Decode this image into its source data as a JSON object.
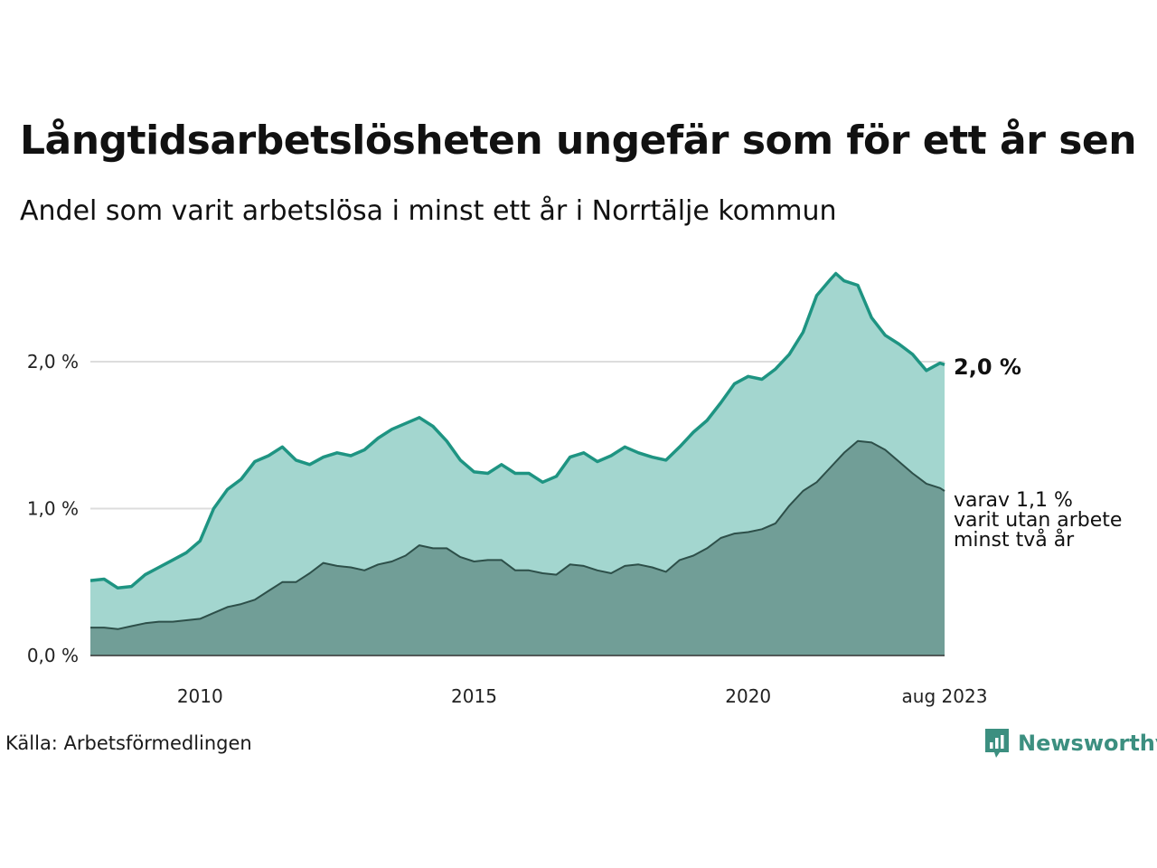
{
  "title": "Långtidsarbetslösheten ungefär som för ett år sen",
  "subtitle": "Andel som varit arbetslösa i minst ett år i Norrtälje kommun",
  "source": "Källa: Arbetsförmedlingen",
  "logo_text": "Newsworthy",
  "colors": {
    "total_line": "#1e9482",
    "total_fill": "#a3d6cf",
    "sub_line": "#2d4f49",
    "sub_fill": "#719e97",
    "grid": "#dddddd",
    "logo": "#3c8f80"
  },
  "chart_data": {
    "type": "area",
    "title": "Långtidsarbetslösheten ungefär som för ett år sen",
    "subtitle": "Andel som varit arbetslösa i minst ett år i Norrtälje kommun",
    "xlabel": "",
    "ylabel": "",
    "x_range": [
      2008.0,
      2023.583
    ],
    "ylim": [
      0.0,
      2.75
    ],
    "y_ticks": [
      0.0,
      1.0,
      2.0
    ],
    "y_tick_labels": [
      "0,0 %",
      "1,0 %",
      "2,0 %"
    ],
    "x_ticks": [
      2010,
      2015,
      2020,
      2023.583
    ],
    "x_tick_labels": [
      "2010",
      "2015",
      "2020",
      "aug 2023"
    ],
    "grid": true,
    "series": [
      {
        "key": "total",
        "points": [
          [
            2008.0,
            0.51
          ],
          [
            2008.25,
            0.52
          ],
          [
            2008.5,
            0.46
          ],
          [
            2008.75,
            0.47
          ],
          [
            2009.0,
            0.55
          ],
          [
            2009.25,
            0.6
          ],
          [
            2009.5,
            0.65
          ],
          [
            2009.75,
            0.7
          ],
          [
            2010.0,
            0.78
          ],
          [
            2010.25,
            1.0
          ],
          [
            2010.5,
            1.13
          ],
          [
            2010.75,
            1.2
          ],
          [
            2011.0,
            1.32
          ],
          [
            2011.25,
            1.36
          ],
          [
            2011.5,
            1.42
          ],
          [
            2011.75,
            1.33
          ],
          [
            2012.0,
            1.3
          ],
          [
            2012.25,
            1.35
          ],
          [
            2012.5,
            1.38
          ],
          [
            2012.75,
            1.36
          ],
          [
            2013.0,
            1.4
          ],
          [
            2013.25,
            1.48
          ],
          [
            2013.5,
            1.54
          ],
          [
            2013.75,
            1.58
          ],
          [
            2014.0,
            1.62
          ],
          [
            2014.25,
            1.56
          ],
          [
            2014.5,
            1.46
          ],
          [
            2014.75,
            1.33
          ],
          [
            2015.0,
            1.25
          ],
          [
            2015.25,
            1.24
          ],
          [
            2015.5,
            1.3
          ],
          [
            2015.75,
            1.24
          ],
          [
            2016.0,
            1.24
          ],
          [
            2016.25,
            1.18
          ],
          [
            2016.5,
            1.22
          ],
          [
            2016.75,
            1.35
          ],
          [
            2017.0,
            1.38
          ],
          [
            2017.25,
            1.32
          ],
          [
            2017.5,
            1.36
          ],
          [
            2017.75,
            1.42
          ],
          [
            2018.0,
            1.38
          ],
          [
            2018.25,
            1.35
          ],
          [
            2018.5,
            1.33
          ],
          [
            2018.75,
            1.42
          ],
          [
            2019.0,
            1.52
          ],
          [
            2019.25,
            1.6
          ],
          [
            2019.5,
            1.72
          ],
          [
            2019.75,
            1.85
          ],
          [
            2020.0,
            1.9
          ],
          [
            2020.25,
            1.88
          ],
          [
            2020.5,
            1.95
          ],
          [
            2020.75,
            2.05
          ],
          [
            2021.0,
            2.2
          ],
          [
            2021.25,
            2.45
          ],
          [
            2021.5,
            2.56
          ],
          [
            2021.6,
            2.6
          ],
          [
            2021.75,
            2.55
          ],
          [
            2022.0,
            2.52
          ],
          [
            2022.25,
            2.3
          ],
          [
            2022.5,
            2.18
          ],
          [
            2022.75,
            2.12
          ],
          [
            2023.0,
            2.05
          ],
          [
            2023.25,
            1.94
          ],
          [
            2023.5,
            1.99
          ],
          [
            2023.583,
            1.98
          ]
        ]
      },
      {
        "key": "sub",
        "points": [
          [
            2008.0,
            0.19
          ],
          [
            2008.25,
            0.19
          ],
          [
            2008.5,
            0.18
          ],
          [
            2008.75,
            0.2
          ],
          [
            2009.0,
            0.22
          ],
          [
            2009.25,
            0.23
          ],
          [
            2009.5,
            0.23
          ],
          [
            2009.75,
            0.24
          ],
          [
            2010.0,
            0.25
          ],
          [
            2010.25,
            0.29
          ],
          [
            2010.5,
            0.33
          ],
          [
            2010.75,
            0.35
          ],
          [
            2011.0,
            0.38
          ],
          [
            2011.25,
            0.44
          ],
          [
            2011.5,
            0.5
          ],
          [
            2011.75,
            0.5
          ],
          [
            2012.0,
            0.56
          ],
          [
            2012.25,
            0.63
          ],
          [
            2012.5,
            0.61
          ],
          [
            2012.75,
            0.6
          ],
          [
            2013.0,
            0.58
          ],
          [
            2013.25,
            0.62
          ],
          [
            2013.5,
            0.64
          ],
          [
            2013.75,
            0.68
          ],
          [
            2014.0,
            0.75
          ],
          [
            2014.25,
            0.73
          ],
          [
            2014.5,
            0.73
          ],
          [
            2014.75,
            0.67
          ],
          [
            2015.0,
            0.64
          ],
          [
            2015.25,
            0.65
          ],
          [
            2015.5,
            0.65
          ],
          [
            2015.75,
            0.58
          ],
          [
            2016.0,
            0.58
          ],
          [
            2016.25,
            0.56
          ],
          [
            2016.5,
            0.55
          ],
          [
            2016.75,
            0.62
          ],
          [
            2017.0,
            0.61
          ],
          [
            2017.25,
            0.58
          ],
          [
            2017.5,
            0.56
          ],
          [
            2017.75,
            0.61
          ],
          [
            2018.0,
            0.62
          ],
          [
            2018.25,
            0.6
          ],
          [
            2018.5,
            0.57
          ],
          [
            2018.75,
            0.65
          ],
          [
            2019.0,
            0.68
          ],
          [
            2019.25,
            0.73
          ],
          [
            2019.5,
            0.8
          ],
          [
            2019.75,
            0.83
          ],
          [
            2020.0,
            0.84
          ],
          [
            2020.25,
            0.86
          ],
          [
            2020.5,
            0.9
          ],
          [
            2020.75,
            1.02
          ],
          [
            2021.0,
            1.12
          ],
          [
            2021.25,
            1.18
          ],
          [
            2021.5,
            1.28
          ],
          [
            2021.75,
            1.38
          ],
          [
            2022.0,
            1.46
          ],
          [
            2022.25,
            1.45
          ],
          [
            2022.5,
            1.4
          ],
          [
            2022.75,
            1.32
          ],
          [
            2023.0,
            1.24
          ],
          [
            2023.25,
            1.17
          ],
          [
            2023.5,
            1.14
          ],
          [
            2023.583,
            1.12
          ]
        ]
      }
    ],
    "annotations": {
      "total_label": "2,0 %",
      "sub_label_lines": [
        "varav 1,1 %",
        "varit utan arbete",
        "minst två år"
      ]
    }
  }
}
